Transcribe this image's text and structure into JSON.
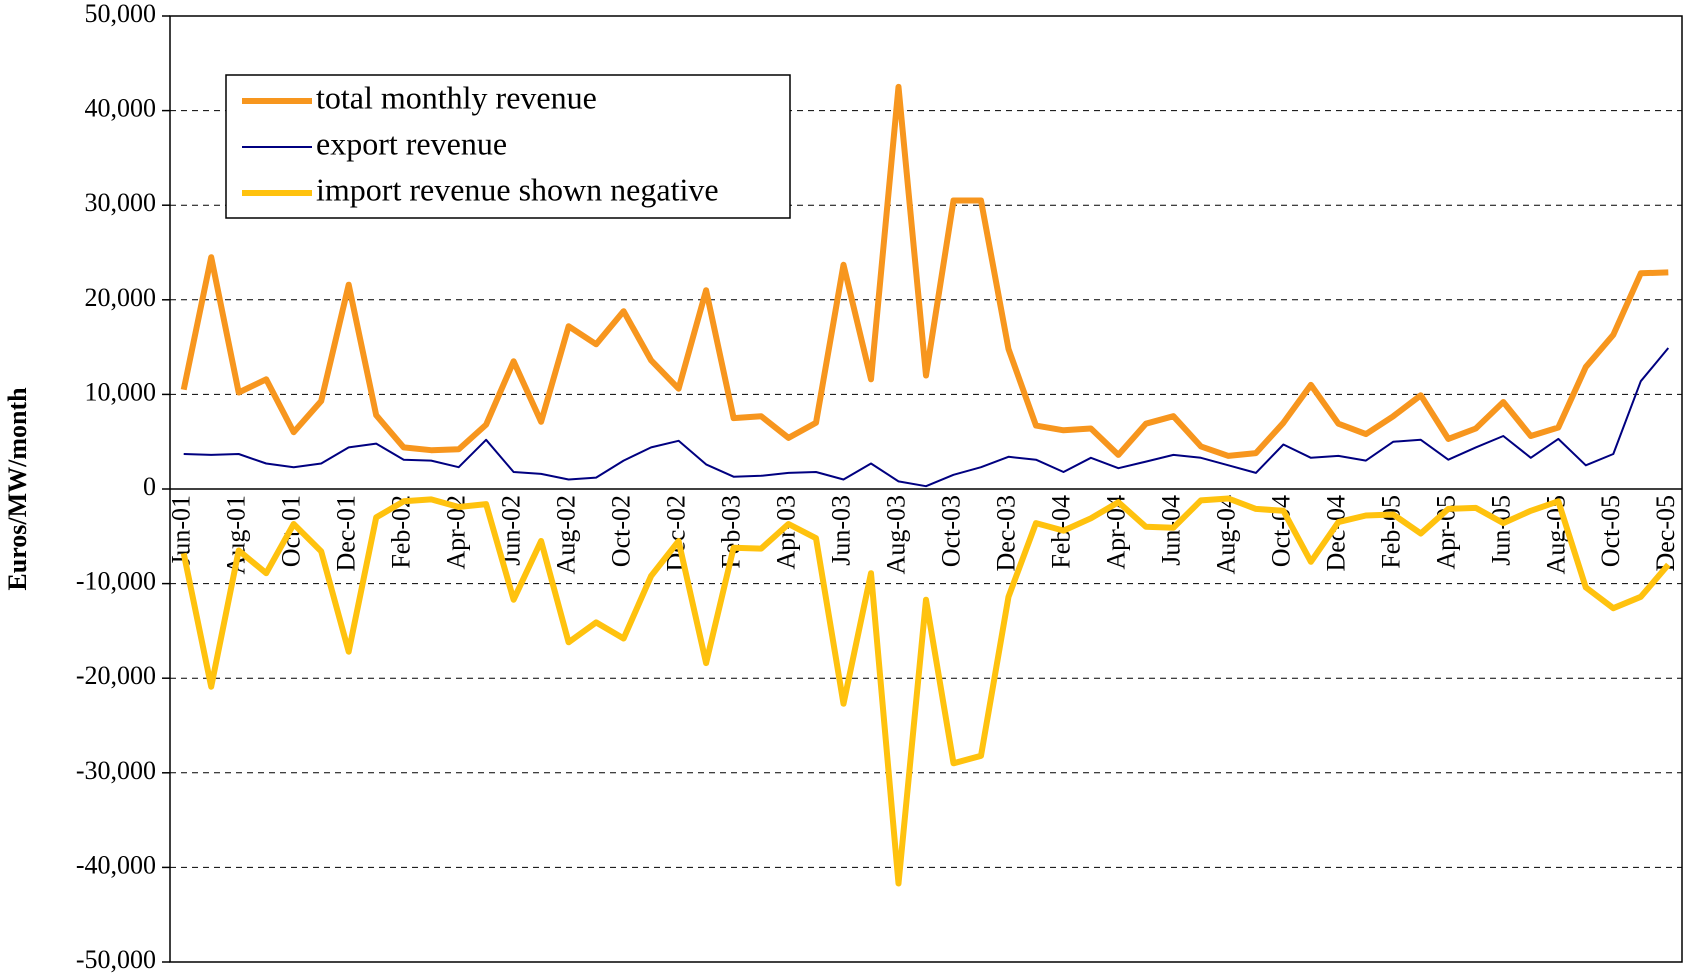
{
  "chart_data": {
    "type": "line",
    "y_label": "Euros/MW/month",
    "categories": [
      "Jun-01",
      null,
      "Aug-01",
      null,
      "Oct-01",
      null,
      "Dec-01",
      null,
      "Feb-02",
      null,
      "Apr-02",
      null,
      "Jun-02",
      null,
      "Aug-02",
      null,
      "Oct-02",
      null,
      "Dec-02",
      null,
      "Feb-03",
      null,
      "Apr-03",
      null,
      "Jun-03",
      null,
      "Aug-03",
      null,
      "Oct-03",
      null,
      "Dec-03",
      null,
      "Feb-04",
      null,
      "Apr-04",
      null,
      "Jun-04",
      null,
      "Aug-04",
      null,
      "Oct-04",
      null,
      "Dec-04",
      null,
      "Feb-05",
      null,
      "Apr-05",
      null,
      "Jun-05",
      null,
      "Aug-05",
      null,
      "Oct-05",
      null,
      "Dec-05"
    ],
    "series": [
      {
        "name": "total monthly revenue",
        "color": "#f7961e",
        "width": 6,
        "values": [
          10500,
          24500,
          10200,
          11600,
          6000,
          9300,
          21600,
          7800,
          4400,
          4100,
          4200,
          6800,
          13500,
          7100,
          17200,
          15300,
          18800,
          13600,
          10600,
          21000,
          7500,
          7700,
          5400,
          7000,
          23700,
          11600,
          42500,
          12000,
          30500,
          30500,
          14800,
          6700,
          6200,
          6400,
          3600,
          6900,
          7700,
          4500,
          3500,
          3800,
          7000,
          11000,
          6900,
          5800,
          7700,
          9900,
          5300,
          6400,
          9200,
          5600,
          6500,
          12900,
          16300,
          22800,
          22900
        ]
      },
      {
        "name": "export revenue",
        "color": "#000080",
        "width": 2,
        "values": [
          3700,
          3600,
          3700,
          2700,
          2300,
          2700,
          4400,
          4800,
          3100,
          3000,
          2300,
          5200,
          1800,
          1600,
          1000,
          1200,
          3000,
          4400,
          5100,
          2600,
          1300,
          1400,
          1700,
          1800,
          1000,
          2700,
          800,
          300,
          1500,
          2300,
          3400,
          3100,
          1800,
          3300,
          2200,
          2900,
          3600,
          3300,
          2500,
          1700,
          4700,
          3300,
          3500,
          3000,
          5000,
          5200,
          3100,
          4400,
          5600,
          3300,
          5300,
          2500,
          3700,
          11400,
          14900
        ]
      },
      {
        "name": "import revenue shown negative",
        "color": "#ffc20e",
        "width": 6,
        "values": [
          -6800,
          -20900,
          -6500,
          -8900,
          -3700,
          -6600,
          -17200,
          -3000,
          -1300,
          -1100,
          -1900,
          -1600,
          -11700,
          -5500,
          -16200,
          -14100,
          -15800,
          -9200,
          -5500,
          -18400,
          -6200,
          -6300,
          -3700,
          -5200,
          -22700,
          -8900,
          -41700,
          -11700,
          -29000,
          -28200,
          -11400,
          -3600,
          -4400,
          -3100,
          -1400,
          -4000,
          -4100,
          -1200,
          -1000,
          -2100,
          -2300,
          -7700,
          -3500,
          -2800,
          -2700,
          -4700,
          -2100,
          -2000,
          -3600,
          -2300,
          -1300,
          -10400,
          -12600,
          -11400,
          -8000
        ]
      }
    ],
    "ylim": [
      -50000,
      50000
    ],
    "yticks": [
      {
        "value": -50000,
        "label": "-50,000"
      },
      {
        "value": -40000,
        "label": "-40,000"
      },
      {
        "value": -30000,
        "label": "-30,000"
      },
      {
        "value": -20000,
        "label": "-20,000"
      },
      {
        "value": -10000,
        "label": "-10,000"
      },
      0,
      {
        "value": 10000,
        "label": "10,000"
      },
      {
        "value": 20000,
        "label": "20,000"
      },
      {
        "value": 30000,
        "label": "30,000"
      },
      {
        "value": 40000,
        "label": "40,000"
      },
      {
        "value": 50000,
        "label": "50,000"
      }
    ],
    "grid": true,
    "legend": "upper left"
  }
}
